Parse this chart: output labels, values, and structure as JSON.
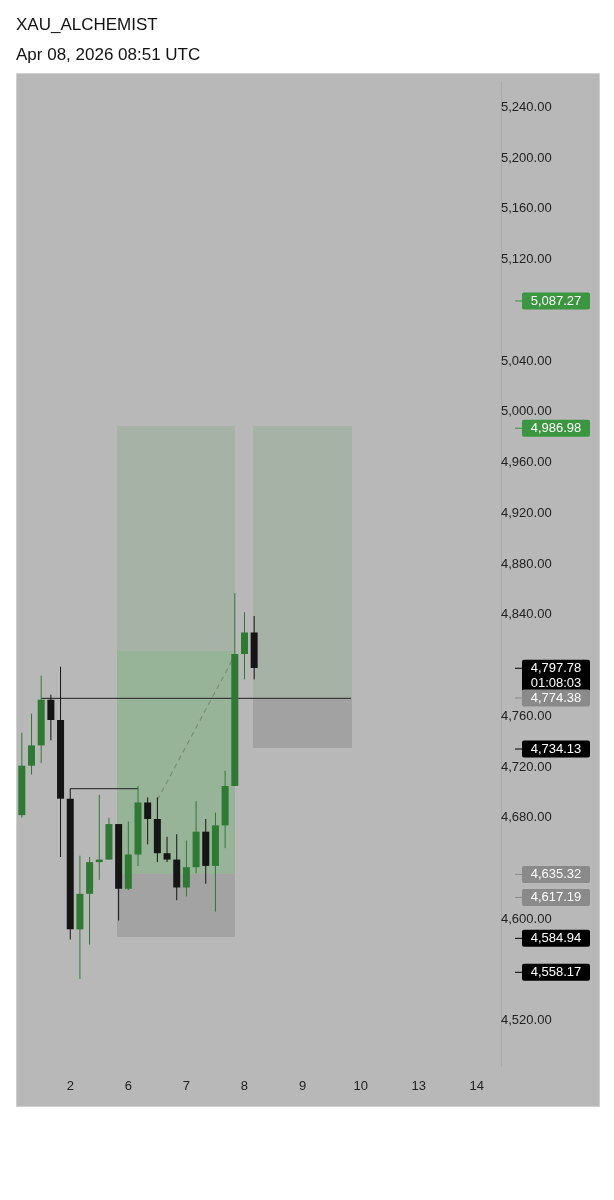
{
  "chart_data": {
    "type": "candlestick",
    "title": "XAU_ALCHEMIST",
    "subtitle": "Apr 08, 2026 08:51 UTC",
    "categories": [
      null,
      null,
      null,
      null,
      null,
      "2",
      null,
      null,
      null,
      null,
      null,
      "6",
      null,
      null,
      null,
      null,
      null,
      "7",
      null,
      null,
      null,
      null,
      null,
      "8",
      null,
      null,
      null,
      null,
      null,
      "9",
      null,
      null,
      null,
      null,
      null,
      "10",
      null,
      null,
      null,
      null,
      null,
      "13",
      null,
      null,
      null,
      null,
      null,
      "14",
      null,
      null
    ],
    "ohlc": [
      [
        4682,
        4747,
        4680,
        4721
      ],
      [
        4721,
        4762,
        4714,
        4737
      ],
      [
        4737,
        4792,
        4723,
        4773
      ],
      [
        4773,
        4777,
        4741,
        4757
      ],
      [
        4757,
        4799,
        4649,
        4695
      ],
      [
        4695,
        4703,
        4584,
        4592
      ],
      [
        4592,
        4650,
        4553,
        4620
      ],
      [
        4620,
        4649,
        4580,
        4645
      ],
      [
        4645,
        4698,
        4631,
        4647
      ],
      [
        4647,
        4680,
        4647,
        4675
      ],
      [
        4675,
        4675,
        4599,
        4624
      ],
      [
        4624,
        4677,
        4623,
        4651
      ],
      [
        4651,
        4705,
        4642,
        4692
      ],
      [
        4692,
        4696,
        4659,
        4679
      ],
      [
        4679,
        4696,
        4645,
        4652
      ],
      [
        4652,
        4665,
        4645,
        4647
      ],
      [
        4647,
        4667,
        4615,
        4625
      ],
      [
        4625,
        4662,
        4618,
        4641
      ],
      [
        4641,
        4693,
        4636,
        4669
      ],
      [
        4669,
        4679,
        4628,
        4642
      ],
      [
        4642,
        4684,
        4606,
        4674
      ],
      [
        4674,
        4717,
        4656,
        4705
      ],
      [
        4705,
        4857,
        4705,
        4809
      ],
      [
        4809,
        4842,
        4789,
        4826
      ],
      [
        4826,
        4839,
        4789,
        4798
      ],
      null,
      null,
      null,
      null,
      null,
      null,
      null,
      null,
      null,
      null,
      null,
      null,
      null,
      null,
      null,
      null,
      null,
      null,
      null,
      null,
      null,
      null,
      null,
      null,
      null
    ],
    "colors": [
      "#2e7a33",
      "#2e7a33",
      "#2e7a33",
      "#151515",
      "#151515",
      "#151515",
      "#2e7a33",
      "#2e7a33",
      "#2e7a33",
      "#2e7a33",
      "#151515",
      "#2e7a33",
      "#2e7a33",
      "#151515",
      "#151515",
      "#151515",
      "#151515",
      "#2e7a33",
      "#2e7a33",
      "#151515",
      "#2e7a33",
      "#2e7a33",
      "#2e7a33",
      "#2e7a33",
      "#151515",
      null,
      null,
      null,
      null,
      null,
      null,
      null,
      null,
      null,
      null,
      null,
      null,
      null,
      null,
      null,
      null,
      null,
      null,
      null,
      null,
      null,
      null,
      null,
      null,
      null
    ],
    "series": [
      {
        "type": "line",
        "color": "#3c3c3c",
        "values": [
          null,
          null,
          4774,
          null,
          null,
          null,
          null,
          null,
          null,
          null,
          null,
          null,
          null,
          null,
          null,
          null,
          null,
          null,
          null,
          null,
          null,
          null,
          null,
          null,
          null,
          null,
          null,
          null,
          null,
          null,
          null,
          null,
          null,
          null,
          4774,
          null,
          null,
          null,
          null,
          null,
          null,
          null,
          null,
          null,
          null,
          null,
          null,
          null,
          null,
          null
        ]
      },
      {
        "type": "line",
        "color": "#3c3c3c",
        "values": [
          null,
          null,
          null,
          null,
          null,
          4703,
          null,
          null,
          null,
          null,
          null,
          null,
          4703,
          null,
          null,
          null,
          null,
          null,
          null,
          null,
          null,
          null,
          null,
          null,
          null,
          null,
          null,
          null,
          null,
          null,
          null,
          null,
          null,
          null,
          null,
          null,
          null,
          null,
          null,
          null,
          null,
          null,
          null,
          null,
          null,
          null,
          null,
          null,
          null,
          null
        ]
      },
      {
        "type": "line",
        "color": "#7c8c7c",
        "line_style": "dashed",
        "values": [
          null,
          null,
          null,
          null,
          null,
          null,
          null,
          null,
          null,
          null,
          null,
          null,
          null,
          null,
          4694,
          null,
          null,
          null,
          null,
          null,
          null,
          null,
          4808,
          null,
          null,
          null,
          null,
          null,
          null,
          null,
          null,
          null,
          null,
          null,
          null,
          null,
          null,
          null,
          null,
          null,
          null,
          null,
          null,
          null,
          null,
          null,
          null,
          null,
          null,
          null
        ]
      }
    ],
    "ref_lines": [
      {
        "axis": "y",
        "value": 5087.27,
        "label": "5,087.27",
        "color": "#3a963f"
      },
      {
        "axis": "y",
        "value": 4986.98,
        "label": "4,986.98",
        "color": "#3a963f"
      },
      {
        "axis": "y",
        "value": 4797.78,
        "label": "4,797.78\n01:08:03",
        "color": "#000000"
      },
      {
        "axis": "y",
        "value": 4774.38,
        "label": "4,774.38",
        "color": "#8a8a8a"
      },
      {
        "axis": "y",
        "value": 4734.13,
        "label": "4,734.13",
        "color": "#000000"
      },
      {
        "axis": "y",
        "value": 4635.32,
        "label": "4,635.32",
        "color": "#8a8a8a"
      },
      {
        "axis": "y",
        "value": 4617.19,
        "label": "4,617.19",
        "color": "#8a8a8a"
      },
      {
        "axis": "y",
        "value": 4584.94,
        "label": "4,584.94",
        "color": "#000000"
      },
      {
        "axis": "y",
        "value": 4558.17,
        "label": "4,558.17",
        "color": "#000000"
      }
    ],
    "ylim": [
      4484,
      5260
    ],
    "yticks": [
      {
        "value": 4520,
        "label": "4,520.00"
      },
      {
        "value": 4600,
        "label": "4,600.00"
      },
      {
        "value": 4680,
        "label": "4,680.00"
      },
      {
        "value": 4720,
        "label": "4,720.00"
      },
      {
        "value": 4760,
        "label": "4,760.00"
      },
      {
        "value": 4840,
        "label": "4,840.00"
      },
      {
        "value": 4880,
        "label": "4,880.00"
      },
      {
        "value": 4920,
        "label": "4,920.00"
      },
      {
        "value": 4960,
        "label": "4,960.00"
      },
      {
        "value": 5000,
        "label": "5,000.00"
      },
      {
        "value": 5040,
        "label": "5,040.00"
      },
      {
        "value": 5120,
        "label": "5,120.00"
      },
      {
        "value": 5160,
        "label": "5,160.00"
      },
      {
        "value": 5200,
        "label": "5,200.00"
      },
      {
        "value": 5240,
        "label": "5,240.00"
      }
    ],
    "grid": false,
    "legend": false
  }
}
